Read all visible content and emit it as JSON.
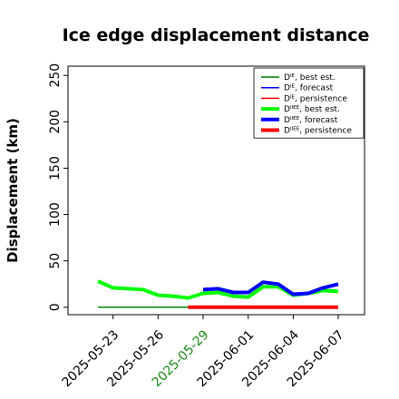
{
  "chart_data": {
    "type": "line",
    "title": "Ice edge displacement distance",
    "xlabel": "",
    "ylabel": "Displacement (km)",
    "ylim": [
      -8,
      260
    ],
    "y_ticks": [
      0,
      50,
      100,
      150,
      200,
      250
    ],
    "x_range": [
      "2025-05-20",
      "2025-06-07"
    ],
    "x_ticks": [
      "2025-05-23",
      "2025-05-26",
      "2025-05-29",
      "2025-06-01",
      "2025-06-04",
      "2025-06-07"
    ],
    "highlighted_tick": "2025-05-29",
    "grid": false,
    "legend_position": "top-right",
    "legend": [
      {
        "sym": "D",
        "sup": "IE",
        "suffix": ", best est.",
        "color": "#008000",
        "width": 1.5
      },
      {
        "sym": "D",
        "sup": "IE",
        "suffix": ", forecast",
        "color": "#0000ff",
        "width": 1.5
      },
      {
        "sym": "D",
        "sup": "IE",
        "suffix": ", persistence",
        "color": "#ff0000",
        "width": 1.5
      },
      {
        "sym": "D",
        "sup": "IIEE",
        "suffix": ", best est.",
        "color": "#00ff00",
        "width": 4
      },
      {
        "sym": "D",
        "sup": "IIEE",
        "suffix": ", forecast",
        "color": "#0000ff",
        "width": 4
      },
      {
        "sym": "D",
        "sup": "IIEE",
        "suffix": ", persistence",
        "color": "#ff0000",
        "width": 4
      }
    ],
    "series": [
      {
        "color": "#00ff00",
        "width": 4,
        "points": [
          {
            "x": "2025-05-22",
            "y": 28
          },
          {
            "x": "2025-05-23",
            "y": 21
          },
          {
            "x": "2025-05-24",
            "y": 20
          },
          {
            "x": "2025-05-25",
            "y": 19
          },
          {
            "x": "2025-05-26",
            "y": 13
          },
          {
            "x": "2025-05-27",
            "y": 12
          },
          {
            "x": "2025-05-28",
            "y": 10
          },
          {
            "x": "2025-05-29",
            "y": 15
          },
          {
            "x": "2025-05-30",
            "y": 16
          },
          {
            "x": "2025-05-31",
            "y": 12
          },
          {
            "x": "2025-06-01",
            "y": 11
          },
          {
            "x": "2025-06-02",
            "y": 22
          },
          {
            "x": "2025-06-03",
            "y": 22
          },
          {
            "x": "2025-06-04",
            "y": 13
          },
          {
            "x": "2025-06-05",
            "y": 15
          },
          {
            "x": "2025-06-06",
            "y": 18
          },
          {
            "x": "2025-06-07",
            "y": 17
          }
        ]
      },
      {
        "color": "#0000ff",
        "width": 4,
        "points": [
          {
            "x": "2025-05-29",
            "y": 19
          },
          {
            "x": "2025-05-30",
            "y": 20
          },
          {
            "x": "2025-05-31",
            "y": 16
          },
          {
            "x": "2025-06-01",
            "y": 16
          },
          {
            "x": "2025-06-02",
            "y": 27
          },
          {
            "x": "2025-06-03",
            "y": 25
          },
          {
            "x": "2025-06-04",
            "y": 14
          },
          {
            "x": "2025-06-05",
            "y": 15
          },
          {
            "x": "2025-06-06",
            "y": 21
          },
          {
            "x": "2025-06-07",
            "y": 25
          }
        ]
      },
      {
        "color": "#008000",
        "width": 1.5,
        "points": [
          {
            "x": "2025-05-22",
            "y": 0
          },
          {
            "x": "2025-05-28",
            "y": 0
          }
        ]
      },
      {
        "color": "#ff0000",
        "width": 4,
        "points": [
          {
            "x": "2025-05-28",
            "y": 0
          },
          {
            "x": "2025-06-07",
            "y": 0
          }
        ]
      }
    ]
  }
}
